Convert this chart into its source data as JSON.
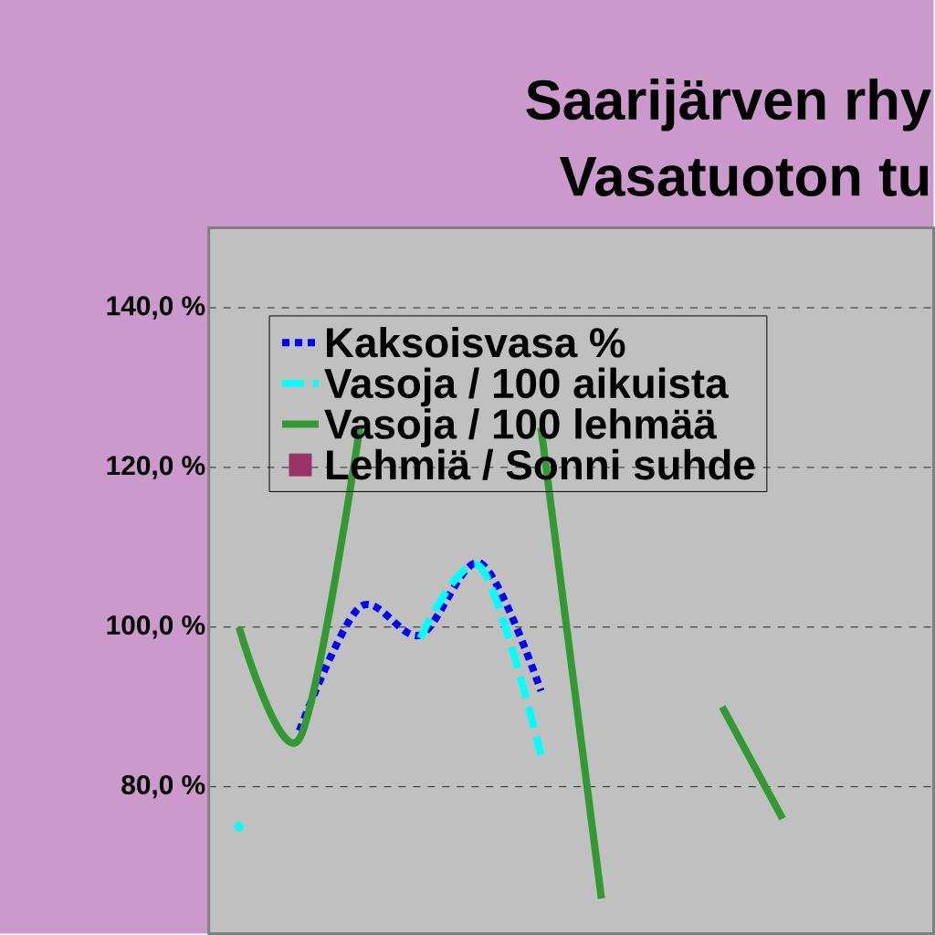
{
  "chart_data": {
    "type": "line",
    "title": "Saarijärven rhy",
    "subtitle": "Vasatuoton tu",
    "categories": [
      null,
      null,
      null,
      null,
      null,
      null,
      null,
      null,
      null,
      null,
      null,
      null
    ],
    "series": [
      {
        "name": "Kaksoisvasa %",
        "color": "#0000ff",
        "line_style": "dotted",
        "values": [
          null,
          87,
          102.5,
          99,
          108,
          92,
          null,
          null,
          null,
          null,
          null,
          null
        ]
      },
      {
        "name": "Vasoja / 100 aikuista",
        "color": "#00ffff",
        "line_style": "dashed",
        "values": [
          75,
          null,
          null,
          98.6,
          107.5,
          84,
          null,
          null,
          null,
          null,
          null,
          null
        ]
      },
      {
        "name": "Vasoja / 100 lehmää",
        "color": "#339933",
        "line_style": "solid",
        "values": [
          100,
          86,
          125,
          null,
          null,
          125,
          66,
          null,
          90,
          76,
          null,
          null
        ]
      },
      {
        "name": "Lehmiä / Sonni suhde",
        "color": "#993366",
        "type": "scatter",
        "marker": "square",
        "values": [
          null,
          null,
          null,
          null,
          null,
          null,
          null,
          null,
          null,
          null,
          null,
          null
        ]
      }
    ],
    "ylim": [
      61.6,
      150
    ],
    "yticks": [
      {
        "value": 80,
        "label": "80,0 %"
      },
      {
        "value": 100,
        "label": "100,0 %"
      },
      {
        "value": 120,
        "label": "120,0 %"
      },
      {
        "value": 140,
        "label": "140,0 %"
      }
    ],
    "grid": "y",
    "legend": "top",
    "marker": "none"
  }
}
